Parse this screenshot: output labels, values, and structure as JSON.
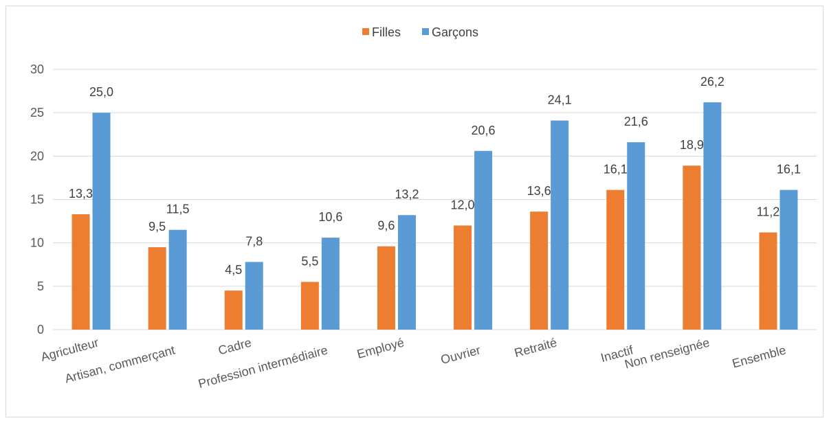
{
  "colors": {
    "filles": "#ED7D31",
    "garcons": "#5B9BD5",
    "grid": "#D9D9D9",
    "text": "#595959"
  },
  "chart_data": {
    "type": "bar",
    "title": "",
    "xlabel": "",
    "ylabel": "",
    "ylim": [
      0,
      30
    ],
    "yticks": [
      "0",
      "5",
      "10",
      "15",
      "20",
      "25",
      "30"
    ],
    "grid": true,
    "legend_position": "top-center",
    "categories": [
      "Agriculteur",
      "Artisan, commerçant",
      "Cadre",
      "Profession intermédiaire",
      "Employé",
      "Ouvrier",
      "Retraité",
      "Inactif",
      "Non renseignée",
      "Ensemble"
    ],
    "series": [
      {
        "name": "Filles",
        "values": [
          13.3,
          9.5,
          4.5,
          5.5,
          9.6,
          12.0,
          13.6,
          16.1,
          18.9,
          11.2
        ],
        "labels": [
          "13,3",
          "9,5",
          "4,5",
          "5,5",
          "9,6",
          "12,0",
          "13,6",
          "16,1",
          "18,9",
          "11,2"
        ]
      },
      {
        "name": "Garçons",
        "values": [
          25.0,
          11.5,
          7.8,
          10.6,
          13.2,
          20.6,
          24.1,
          21.6,
          26.2,
          16.1
        ],
        "labels": [
          "25,0",
          "11,5",
          "7,8",
          "10,6",
          "13,2",
          "20,6",
          "24,1",
          "21,6",
          "26,2",
          "16,1"
        ]
      }
    ]
  }
}
